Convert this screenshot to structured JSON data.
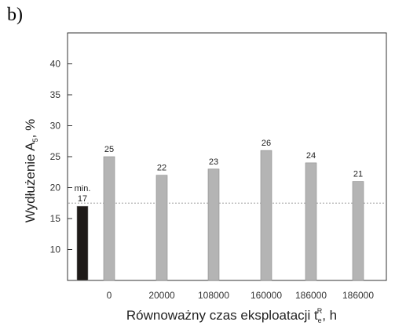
{
  "panel_label": "b)",
  "chart_data": {
    "type": "bar",
    "categories": [
      "",
      "0",
      "20000",
      "108000",
      "160000",
      "186000",
      "186000"
    ],
    "values": [
      17,
      25,
      22,
      23,
      26,
      24,
      21
    ],
    "value_labels": [
      "17",
      "25",
      "22",
      "23",
      "26",
      "24",
      "21"
    ],
    "min_label": "min.",
    "bar_colors": [
      "#1e1a18",
      "#b4b4b4",
      "#b4b4b4",
      "#b4b4b4",
      "#b4b4b4",
      "#b4b4b4",
      "#b4b4b4"
    ],
    "reference_line": 17.5,
    "reference_line_style": "dotted",
    "xlabel": "Równoważny czas eksploatacji t",
    "xlabel_sub": "e",
    "xlabel_sup": "R",
    "xlabel_suffix": ", h",
    "ylabel": "Wydłużenie  A",
    "ylabel_sub": "5",
    "ylabel_suffix": ", %",
    "ylim": [
      5,
      45
    ],
    "yticks": [
      10,
      15,
      20,
      25,
      30,
      35,
      40
    ],
    "ytick_labels": [
      "10",
      "15",
      "20",
      "25",
      "30",
      "35",
      "40"
    ],
    "grid": false,
    "legend": "none"
  }
}
